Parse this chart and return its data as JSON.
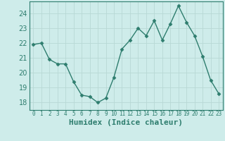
{
  "x": [
    0,
    1,
    2,
    3,
    4,
    5,
    6,
    7,
    8,
    9,
    10,
    11,
    12,
    13,
    14,
    15,
    16,
    17,
    18,
    19,
    20,
    21,
    22,
    23
  ],
  "y": [
    21.9,
    22.0,
    20.9,
    20.6,
    20.6,
    19.4,
    18.5,
    18.4,
    18.0,
    18.3,
    19.7,
    21.6,
    22.2,
    23.0,
    22.5,
    23.5,
    22.2,
    23.3,
    24.5,
    23.4,
    22.5,
    21.1,
    19.5,
    18.6
  ],
  "line_color": "#2e7d6e",
  "marker": "D",
  "marker_size": 2.5,
  "linewidth": 1.0,
  "xlabel": "Humidex (Indice chaleur)",
  "xlim": [
    -0.5,
    23.5
  ],
  "ylim": [
    17.5,
    24.8
  ],
  "yticks": [
    18,
    19,
    20,
    21,
    22,
    23,
    24
  ],
  "xtick_labels": [
    "0",
    "1",
    "2",
    "3",
    "4",
    "5",
    "6",
    "7",
    "8",
    "9",
    "10",
    "11",
    "12",
    "13",
    "14",
    "15",
    "16",
    "17",
    "18",
    "19",
    "20",
    "21",
    "22",
    "23"
  ],
  "bg_color": "#ceecea",
  "grid_color": "#b8d8d5",
  "tick_color": "#2e7d6e",
  "label_color": "#2e7d6e",
  "xlabel_fontsize": 8,
  "ytick_fontsize": 7,
  "xtick_fontsize": 5.5
}
